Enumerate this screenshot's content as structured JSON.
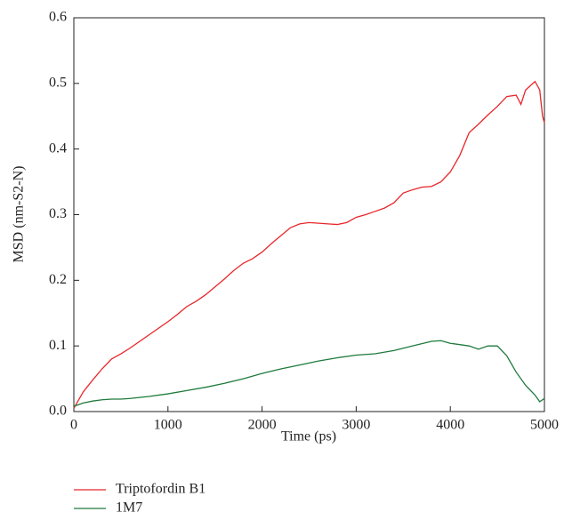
{
  "chart_data": {
    "type": "line",
    "xlabel": "Time (ps)",
    "ylabel": "MSD (nm-S2-N)",
    "xlim": [
      0,
      5000
    ],
    "ylim": [
      0,
      0.6
    ],
    "xticks": [
      0,
      1000,
      2000,
      3000,
      4000,
      5000
    ],
    "yticks": [
      {
        "value": 0,
        "label": "0.0"
      },
      0.1,
      0.2,
      0.3,
      0.4,
      0.5,
      0.6
    ],
    "legend": "bottom",
    "series": [
      {
        "name": "Triptofordin B1",
        "color": "#e8262a",
        "x": [
          0,
          100,
          200,
          300,
          400,
          500,
          600,
          700,
          800,
          900,
          1000,
          1100,
          1200,
          1300,
          1400,
          1500,
          1600,
          1700,
          1800,
          1900,
          2000,
          2100,
          2200,
          2300,
          2400,
          2500,
          2600,
          2700,
          2800,
          2900,
          3000,
          3100,
          3200,
          3300,
          3400,
          3500,
          3600,
          3700,
          3800,
          3900,
          4000,
          4100,
          4200,
          4300,
          4400,
          4500,
          4600,
          4700,
          4750,
          4800,
          4900,
          4950,
          4980,
          5000
        ],
        "values": [
          0.005,
          0.03,
          0.048,
          0.065,
          0.08,
          0.088,
          0.097,
          0.107,
          0.117,
          0.127,
          0.137,
          0.148,
          0.16,
          0.168,
          0.178,
          0.19,
          0.202,
          0.215,
          0.226,
          0.233,
          0.243,
          0.256,
          0.268,
          0.28,
          0.286,
          0.288,
          0.287,
          0.286,
          0.285,
          0.288,
          0.296,
          0.3,
          0.305,
          0.31,
          0.318,
          0.333,
          0.338,
          0.342,
          0.343,
          0.35,
          0.365,
          0.39,
          0.425,
          0.438,
          0.452,
          0.465,
          0.48,
          0.482,
          0.468,
          0.49,
          0.503,
          0.49,
          0.45,
          0.44
        ]
      },
      {
        "name": "1M7",
        "color": "#1e7a3c",
        "x": [
          0,
          100,
          200,
          300,
          400,
          500,
          600,
          800,
          1000,
          1200,
          1400,
          1600,
          1800,
          2000,
          2200,
          2400,
          2600,
          2800,
          3000,
          3200,
          3400,
          3600,
          3800,
          3900,
          4000,
          4200,
          4300,
          4400,
          4500,
          4600,
          4700,
          4800,
          4900,
          4950,
          5000
        ],
        "values": [
          0.008,
          0.013,
          0.016,
          0.018,
          0.019,
          0.019,
          0.02,
          0.023,
          0.027,
          0.032,
          0.037,
          0.043,
          0.05,
          0.058,
          0.065,
          0.071,
          0.077,
          0.082,
          0.086,
          0.088,
          0.093,
          0.1,
          0.107,
          0.108,
          0.104,
          0.1,
          0.095,
          0.1,
          0.1,
          0.085,
          0.06,
          0.04,
          0.025,
          0.015,
          0.02
        ]
      }
    ]
  }
}
